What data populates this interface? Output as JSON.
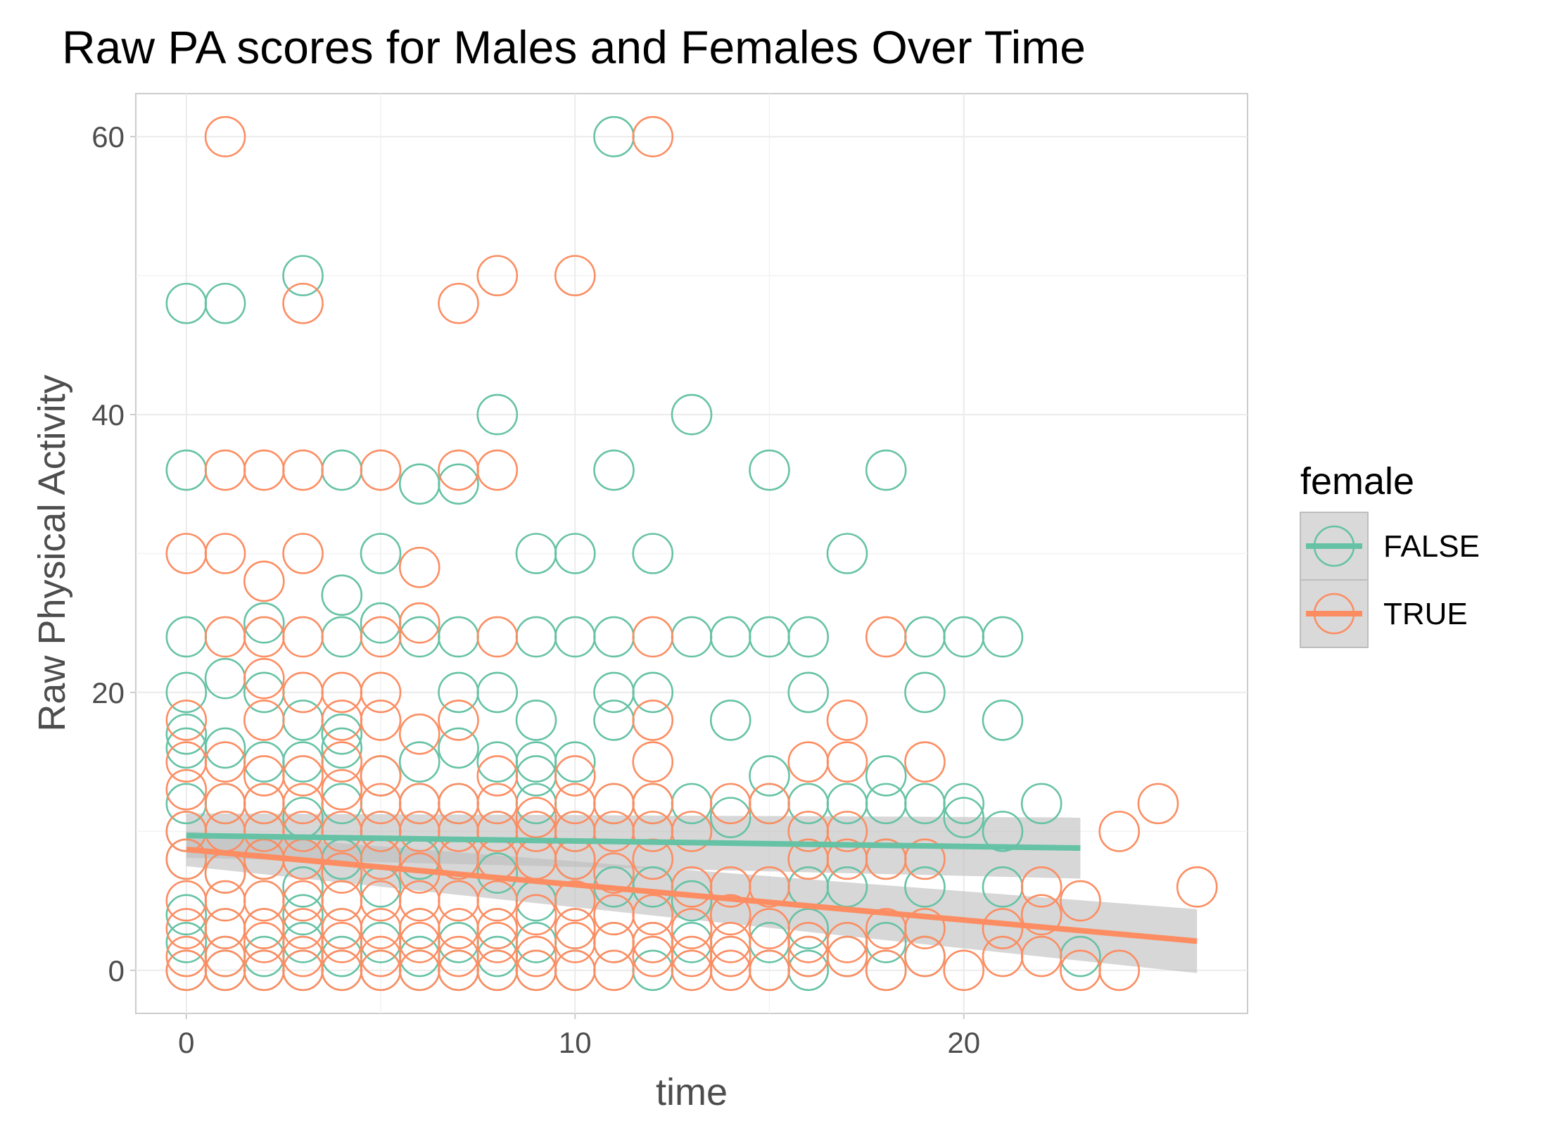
{
  "chart_data": {
    "type": "scatter",
    "title": "Raw PA scores for Males and Females Over Time",
    "xlabel": "time",
    "ylabel": "Raw Physical Activity",
    "xlim": [
      -1.3,
      27.3
    ],
    "ylim": [
      -3.1,
      63.1
    ],
    "x_ticks": [
      0,
      10,
      20
    ],
    "y_ticks": [
      0,
      20,
      40,
      60
    ],
    "grid": true,
    "legend": {
      "title": "female",
      "position": "right"
    },
    "marker": "hollow-circle",
    "colors": {
      "FALSE": "#66c2a5",
      "TRUE": "#fc8d62",
      "confidence_band": "#bdbdbd"
    },
    "series": [
      {
        "name": "FALSE",
        "points": [
          [
            0,
            48
          ],
          [
            1,
            48
          ],
          [
            3,
            50
          ],
          [
            11,
            60
          ],
          [
            8,
            40
          ],
          [
            13,
            40
          ],
          [
            0,
            36
          ],
          [
            4,
            36
          ],
          [
            6,
            35
          ],
          [
            7,
            35
          ],
          [
            11,
            36
          ],
          [
            15,
            36
          ],
          [
            18,
            36
          ],
          [
            4,
            27
          ],
          [
            5,
            30
          ],
          [
            9,
            30
          ],
          [
            10,
            30
          ],
          [
            12,
            30
          ],
          [
            17,
            30
          ],
          [
            0,
            24
          ],
          [
            2,
            25
          ],
          [
            4,
            24
          ],
          [
            5,
            25
          ],
          [
            6,
            24
          ],
          [
            7,
            24
          ],
          [
            9,
            24
          ],
          [
            10,
            24
          ],
          [
            11,
            24
          ],
          [
            13,
            24
          ],
          [
            14,
            24
          ],
          [
            15,
            24
          ],
          [
            16,
            24
          ],
          [
            19,
            24
          ],
          [
            20,
            24
          ],
          [
            21,
            24
          ],
          [
            0,
            20
          ],
          [
            1,
            21
          ],
          [
            2,
            20
          ],
          [
            3,
            18
          ],
          [
            7,
            20
          ],
          [
            8,
            20
          ],
          [
            9,
            18
          ],
          [
            11,
            20
          ],
          [
            11,
            18
          ],
          [
            12,
            20
          ],
          [
            14,
            18
          ],
          [
            16,
            20
          ],
          [
            19,
            20
          ],
          [
            21,
            18
          ],
          [
            0,
            17
          ],
          [
            0,
            16
          ],
          [
            1,
            16
          ],
          [
            2,
            15
          ],
          [
            3,
            15
          ],
          [
            4,
            17
          ],
          [
            4,
            16
          ],
          [
            5,
            14
          ],
          [
            6,
            15
          ],
          [
            7,
            16
          ],
          [
            8,
            15
          ],
          [
            9,
            15
          ],
          [
            9,
            14
          ],
          [
            10,
            15
          ],
          [
            15,
            14
          ],
          [
            18,
            14
          ],
          [
            0,
            12
          ],
          [
            0,
            10
          ],
          [
            1,
            12
          ],
          [
            2,
            12
          ],
          [
            3,
            11
          ],
          [
            4,
            12
          ],
          [
            5,
            10
          ],
          [
            6,
            12
          ],
          [
            7,
            12
          ],
          [
            8,
            10
          ],
          [
            9,
            12
          ],
          [
            10,
            10
          ],
          [
            11,
            12
          ],
          [
            12,
            12
          ],
          [
            13,
            12
          ],
          [
            14,
            11
          ],
          [
            15,
            12
          ],
          [
            16,
            12
          ],
          [
            17,
            12
          ],
          [
            18,
            12
          ],
          [
            19,
            12
          ],
          [
            20,
            12
          ],
          [
            20,
            11
          ],
          [
            21,
            10
          ],
          [
            22,
            12
          ],
          [
            0,
            8
          ],
          [
            1,
            7
          ],
          [
            2,
            8
          ],
          [
            3,
            6
          ],
          [
            4,
            8
          ],
          [
            5,
            6
          ],
          [
            6,
            8
          ],
          [
            7,
            8
          ],
          [
            8,
            7
          ],
          [
            9,
            5
          ],
          [
            10,
            8
          ],
          [
            11,
            6
          ],
          [
            12,
            6
          ],
          [
            13,
            5
          ],
          [
            16,
            6
          ],
          [
            17,
            6
          ],
          [
            18,
            8
          ],
          [
            19,
            6
          ],
          [
            21,
            6
          ],
          [
            0,
            4
          ],
          [
            0,
            2
          ],
          [
            1,
            3
          ],
          [
            1,
            1
          ],
          [
            2,
            3
          ],
          [
            2,
            1
          ],
          [
            3,
            4
          ],
          [
            3,
            2
          ],
          [
            4,
            3
          ],
          [
            4,
            1
          ],
          [
            5,
            2
          ],
          [
            6,
            3
          ],
          [
            6,
            1
          ],
          [
            7,
            2
          ],
          [
            8,
            3
          ],
          [
            8,
            1
          ],
          [
            9,
            2
          ],
          [
            10,
            3
          ],
          [
            11,
            2
          ],
          [
            12,
            2
          ],
          [
            13,
            2
          ],
          [
            15,
            2
          ],
          [
            16,
            3
          ],
          [
            16,
            1
          ],
          [
            17,
            1
          ],
          [
            18,
            2
          ],
          [
            19,
            1
          ],
          [
            23,
            1
          ],
          [
            0,
            0
          ],
          [
            1,
            0
          ],
          [
            2,
            0
          ],
          [
            3,
            0
          ],
          [
            4,
            0
          ],
          [
            5,
            0
          ],
          [
            6,
            0
          ],
          [
            7,
            0
          ],
          [
            8,
            0
          ],
          [
            9,
            0
          ],
          [
            10,
            0
          ],
          [
            12,
            0
          ],
          [
            15,
            0
          ],
          [
            16,
            0
          ],
          [
            18,
            0
          ]
        ],
        "trend": {
          "x": [
            0,
            23
          ],
          "y": [
            9.7,
            8.8
          ]
        },
        "band": {
          "x": [
            0,
            23
          ],
          "lower": [
            8.1,
            6.6
          ],
          "upper": [
            11.3,
            11.0
          ]
        }
      },
      {
        "name": "TRUE",
        "points": [
          [
            1,
            60
          ],
          [
            12,
            60
          ],
          [
            3,
            48
          ],
          [
            7,
            48
          ],
          [
            8,
            50
          ],
          [
            10,
            50
          ],
          [
            1,
            36
          ],
          [
            2,
            36
          ],
          [
            3,
            36
          ],
          [
            5,
            36
          ],
          [
            7,
            36
          ],
          [
            8,
            36
          ],
          [
            0,
            30
          ],
          [
            1,
            30
          ],
          [
            2,
            28
          ],
          [
            3,
            30
          ],
          [
            6,
            29
          ],
          [
            6,
            25
          ],
          [
            1,
            24
          ],
          [
            2,
            24
          ],
          [
            3,
            24
          ],
          [
            5,
            24
          ],
          [
            8,
            24
          ],
          [
            12,
            24
          ],
          [
            18,
            24
          ],
          [
            2,
            21
          ],
          [
            2,
            18
          ],
          [
            3,
            20
          ],
          [
            4,
            20
          ],
          [
            5,
            20
          ],
          [
            4,
            18
          ],
          [
            5,
            18
          ],
          [
            6,
            17
          ],
          [
            7,
            18
          ],
          [
            12,
            18
          ],
          [
            17,
            18
          ],
          [
            0,
            18
          ],
          [
            0,
            15
          ],
          [
            1,
            15
          ],
          [
            2,
            14
          ],
          [
            3,
            14
          ],
          [
            4,
            15
          ],
          [
            5,
            14
          ],
          [
            8,
            14
          ],
          [
            10,
            14
          ],
          [
            12,
            15
          ],
          [
            16,
            15
          ],
          [
            17,
            15
          ],
          [
            19,
            15
          ],
          [
            0,
            13
          ],
          [
            1,
            12
          ],
          [
            2,
            12
          ],
          [
            3,
            12
          ],
          [
            4,
            13
          ],
          [
            5,
            12
          ],
          [
            6,
            12
          ],
          [
            7,
            12
          ],
          [
            8,
            12
          ],
          [
            9,
            11
          ],
          [
            10,
            12
          ],
          [
            11,
            12
          ],
          [
            12,
            12
          ],
          [
            13,
            10
          ],
          [
            14,
            12
          ],
          [
            15,
            12
          ],
          [
            16,
            10
          ],
          [
            17,
            10
          ],
          [
            0,
            10
          ],
          [
            1,
            10
          ],
          [
            2,
            10
          ],
          [
            3,
            10
          ],
          [
            4,
            10
          ],
          [
            5,
            10
          ],
          [
            6,
            10
          ],
          [
            7,
            10
          ],
          [
            8,
            10
          ],
          [
            9,
            10
          ],
          [
            10,
            10
          ],
          [
            11,
            10
          ],
          [
            12,
            10
          ],
          [
            24,
            10
          ],
          [
            25,
            12
          ],
          [
            0,
            8
          ],
          [
            1,
            7
          ],
          [
            2,
            8
          ],
          [
            3,
            8
          ],
          [
            4,
            7
          ],
          [
            5,
            8
          ],
          [
            6,
            7
          ],
          [
            7,
            8
          ],
          [
            8,
            8
          ],
          [
            9,
            8
          ],
          [
            10,
            8
          ],
          [
            11,
            7
          ],
          [
            12,
            8
          ],
          [
            13,
            6
          ],
          [
            14,
            6
          ],
          [
            15,
            6
          ],
          [
            16,
            8
          ],
          [
            17,
            8
          ],
          [
            18,
            8
          ],
          [
            19,
            8
          ],
          [
            22,
            6
          ],
          [
            0,
            5
          ],
          [
            0,
            3
          ],
          [
            1,
            5
          ],
          [
            1,
            3
          ],
          [
            2,
            5
          ],
          [
            2,
            3
          ],
          [
            3,
            5
          ],
          [
            3,
            3
          ],
          [
            4,
            5
          ],
          [
            4,
            3
          ],
          [
            5,
            5
          ],
          [
            5,
            3
          ],
          [
            6,
            5
          ],
          [
            6,
            3
          ],
          [
            7,
            5
          ],
          [
            7,
            3
          ],
          [
            8,
            5
          ],
          [
            8,
            3
          ],
          [
            9,
            4
          ],
          [
            10,
            5
          ],
          [
            10,
            3
          ],
          [
            11,
            4
          ],
          [
            11,
            2
          ],
          [
            12,
            4
          ],
          [
            12,
            2
          ],
          [
            13,
            3
          ],
          [
            14,
            4
          ],
          [
            14,
            2
          ],
          [
            15,
            3
          ],
          [
            16,
            2
          ],
          [
            17,
            2
          ],
          [
            18,
            3
          ],
          [
            19,
            3
          ],
          [
            21,
            3
          ],
          [
            22,
            4
          ],
          [
            23,
            5
          ],
          [
            26,
            6
          ],
          [
            0,
            1
          ],
          [
            1,
            1
          ],
          [
            2,
            2
          ],
          [
            3,
            1
          ],
          [
            4,
            2
          ],
          [
            5,
            1
          ],
          [
            6,
            2
          ],
          [
            7,
            1
          ],
          [
            8,
            2
          ],
          [
            9,
            1
          ],
          [
            10,
            2
          ],
          [
            12,
            1
          ],
          [
            13,
            1
          ],
          [
            14,
            1
          ],
          [
            16,
            1
          ],
          [
            17,
            1
          ],
          [
            19,
            1
          ],
          [
            21,
            1
          ],
          [
            22,
            1
          ],
          [
            0,
            0
          ],
          [
            1,
            0
          ],
          [
            2,
            0
          ],
          [
            3,
            0
          ],
          [
            4,
            0
          ],
          [
            5,
            0
          ],
          [
            6,
            0
          ],
          [
            7,
            0
          ],
          [
            8,
            0
          ],
          [
            9,
            0
          ],
          [
            10,
            0
          ],
          [
            11,
            0
          ],
          [
            13,
            0
          ],
          [
            14,
            0
          ],
          [
            15,
            0
          ],
          [
            18,
            0
          ],
          [
            20,
            0
          ],
          [
            23,
            0
          ],
          [
            24,
            0
          ]
        ],
        "trend": {
          "x": [
            0,
            26
          ],
          "y": [
            8.7,
            2.1
          ]
        },
        "band": {
          "x": [
            0,
            26
          ],
          "lower": [
            7.5,
            -0.2
          ],
          "upper": [
            10.0,
            4.4
          ]
        }
      }
    ]
  }
}
